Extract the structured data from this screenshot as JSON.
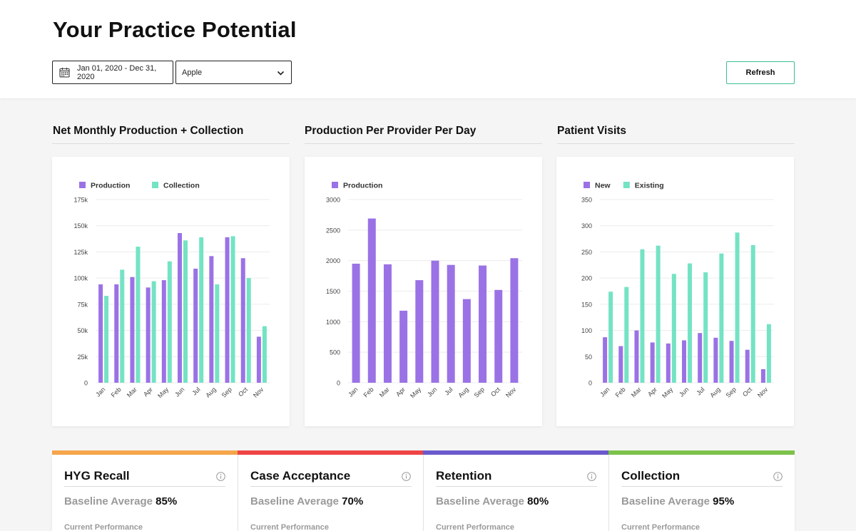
{
  "header": {
    "title": "Your Practice Potential",
    "date_range": "Jan 01, 2020 - Dec 31, 2020",
    "practice": "Apple",
    "refresh_label": "Refresh"
  },
  "charts": {
    "production_collection_title": "Net Monthly Production + Collection",
    "provider_title": "Production Per Provider Per Day",
    "visits_title": "Patient Visits"
  },
  "colors": {
    "purple": "#9b72e6",
    "green": "#74e3c4",
    "orange": "#f5a54a",
    "red": "#ef4444",
    "indigo": "#6a5acd",
    "lime": "#7dc34b"
  },
  "chart_data": [
    {
      "type": "bar",
      "title": "Net Monthly Production + Collection",
      "categories": [
        "Jan",
        "Feb",
        "Mar",
        "Apr",
        "May",
        "Jun",
        "Jul",
        "Aug",
        "Sep",
        "Oct",
        "Nov"
      ],
      "series": [
        {
          "name": "Production",
          "values": [
            94000,
            94000,
            101000,
            91000,
            98000,
            143000,
            109000,
            121000,
            139000,
            119000,
            44000
          ]
        },
        {
          "name": "Collection",
          "values": [
            83000,
            108000,
            130000,
            97000,
            116000,
            136000,
            139000,
            94000,
            140000,
            100000,
            54000
          ]
        }
      ],
      "ylim": [
        0,
        175000
      ],
      "yticks": [
        "0",
        "25k",
        "50k",
        "75k",
        "100k",
        "125k",
        "150k",
        "175k"
      ],
      "legend": "top-left",
      "grid": true
    },
    {
      "type": "bar",
      "title": "Production Per Provider Per Day",
      "categories": [
        "Jan",
        "Feb",
        "Mar",
        "Apr",
        "May",
        "Jun",
        "Jul",
        "Aug",
        "Sep",
        "Oct",
        "Nov"
      ],
      "series": [
        {
          "name": "Production",
          "values": [
            1950,
            2690,
            1940,
            1180,
            1680,
            2000,
            1930,
            1370,
            1920,
            1520,
            2040
          ]
        }
      ],
      "ylim": [
        0,
        3000
      ],
      "yticks": [
        "0",
        "500",
        "1000",
        "1500",
        "2000",
        "2500",
        "3000"
      ],
      "legend": "top-left",
      "grid": true
    },
    {
      "type": "bar",
      "title": "Patient Visits",
      "categories": [
        "Jan",
        "Feb",
        "Mar",
        "Apr",
        "May",
        "Jun",
        "Jul",
        "Aug",
        "Sep",
        "Oct",
        "Nov"
      ],
      "series": [
        {
          "name": "New",
          "values": [
            87,
            70,
            100,
            77,
            75,
            81,
            95,
            86,
            80,
            63,
            26
          ]
        },
        {
          "name": "Existing",
          "values": [
            174,
            183,
            255,
            262,
            208,
            228,
            211,
            247,
            287,
            263,
            112
          ]
        }
      ],
      "ylim": [
        0,
        350
      ],
      "yticks": [
        "0",
        "50",
        "100",
        "150",
        "200",
        "250",
        "300",
        "350"
      ],
      "legend": "top-left",
      "grid": true
    }
  ],
  "kpis": [
    {
      "title": "HYG Recall",
      "baseline_label": "Baseline Average",
      "baseline_value": "85%",
      "current_label": "Current Performance"
    },
    {
      "title": "Case Acceptance",
      "baseline_label": "Baseline Average",
      "baseline_value": "70%",
      "current_label": "Current Performance"
    },
    {
      "title": "Retention",
      "baseline_label": "Baseline Average",
      "baseline_value": "80%",
      "current_label": "Current Performance"
    },
    {
      "title": "Collection",
      "baseline_label": "Baseline Average",
      "baseline_value": "95%",
      "current_label": "Current Performance"
    }
  ]
}
